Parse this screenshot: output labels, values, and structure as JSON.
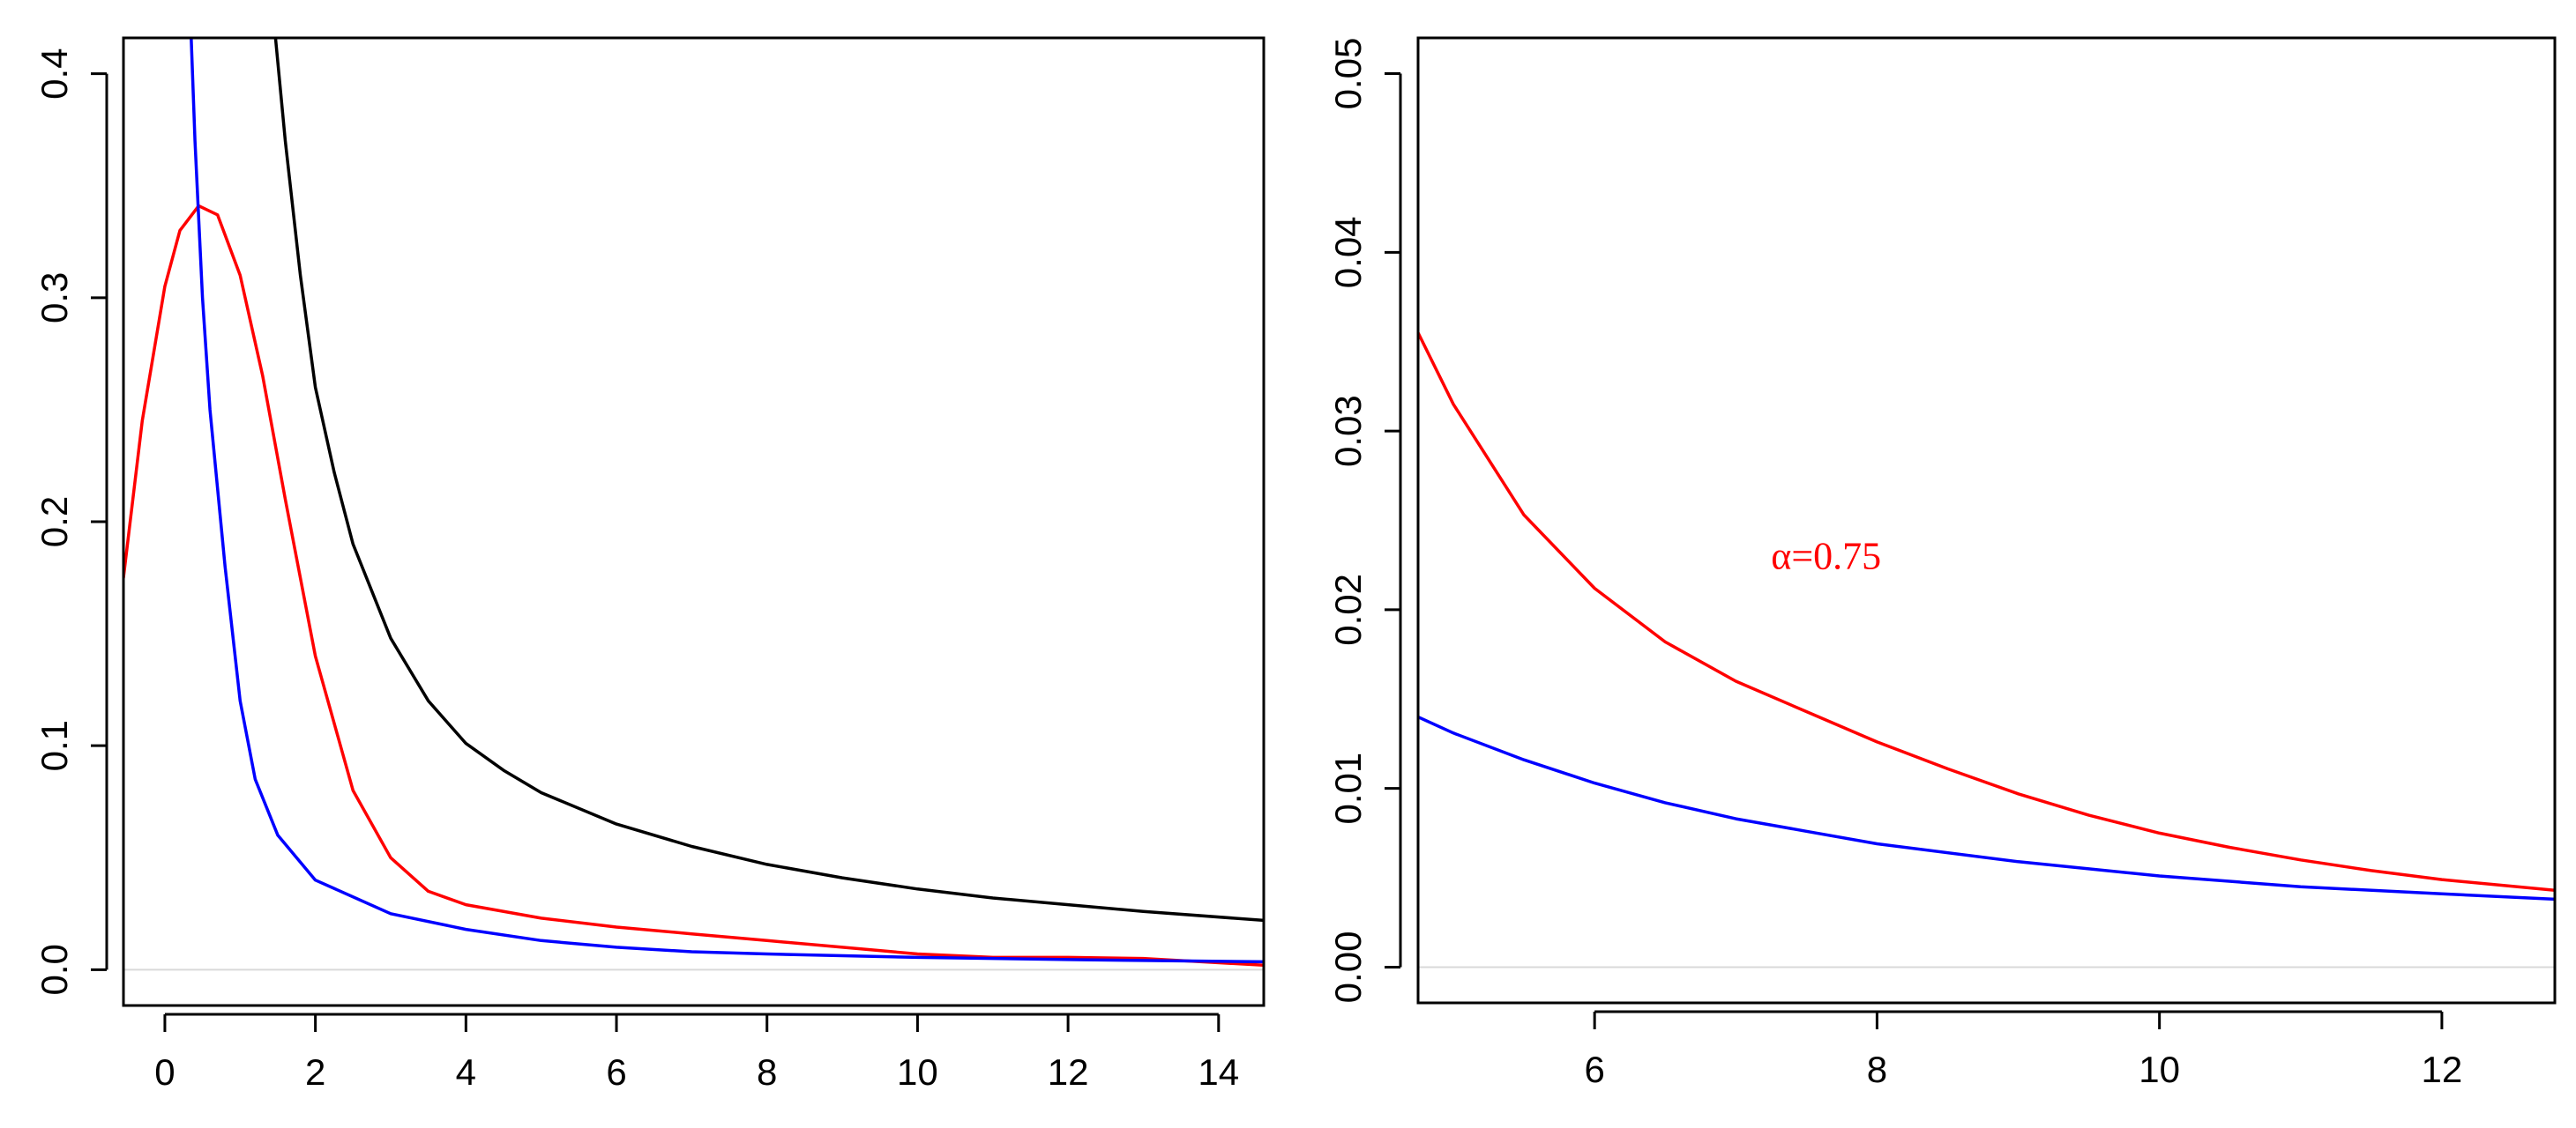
{
  "chart_data": [
    {
      "type": "line",
      "title": "",
      "xlabel": "",
      "ylabel": "",
      "xlim": [
        -0.55,
        14.6
      ],
      "ylim": [
        -0.016,
        0.416
      ],
      "xticks": [
        "0",
        "2",
        "4",
        "6",
        "8",
        "10",
        "12",
        "14"
      ],
      "yticks": [
        "0.0",
        "0.1",
        "0.2",
        "0.3",
        "0.4"
      ],
      "reference_line_y": 0,
      "grid": false,
      "series": [
        {
          "color": "#000000",
          "points": [
            [
              1.47,
              0.416
            ],
            [
              1.6,
              0.37
            ],
            [
              1.8,
              0.31
            ],
            [
              2.0,
              0.26
            ],
            [
              2.25,
              0.222
            ],
            [
              2.5,
              0.19
            ],
            [
              3.0,
              0.148
            ],
            [
              3.5,
              0.12
            ],
            [
              4.0,
              0.101
            ],
            [
              4.5,
              0.089
            ],
            [
              5.0,
              0.079
            ],
            [
              6.0,
              0.065
            ],
            [
              7.0,
              0.055
            ],
            [
              8.0,
              0.047
            ],
            [
              9.0,
              0.041
            ],
            [
              10.0,
              0.036
            ],
            [
              11.0,
              0.032
            ],
            [
              12.0,
              0.029
            ],
            [
              13.0,
              0.026
            ],
            [
              14.6,
              0.022
            ]
          ]
        },
        {
          "color": "#ff0000",
          "points": [
            [
              -0.55,
              0.175
            ],
            [
              -0.3,
              0.245
            ],
            [
              0.0,
              0.305
            ],
            [
              0.2,
              0.33
            ],
            [
              0.45,
              0.341
            ],
            [
              0.7,
              0.337
            ],
            [
              1.0,
              0.31
            ],
            [
              1.3,
              0.265
            ],
            [
              1.6,
              0.21
            ],
            [
              2.0,
              0.14
            ],
            [
              2.5,
              0.08
            ],
            [
              3.0,
              0.05
            ],
            [
              3.5,
              0.035
            ],
            [
              4.0,
              0.029
            ],
            [
              5.0,
              0.023
            ],
            [
              6.0,
              0.019
            ],
            [
              7.0,
              0.016
            ],
            [
              8.0,
              0.013
            ],
            [
              9.0,
              0.01
            ],
            [
              10.0,
              0.007
            ],
            [
              11.0,
              0.0055
            ],
            [
              12.0,
              0.0055
            ],
            [
              13.0,
              0.005
            ],
            [
              14.6,
              0.002
            ]
          ]
        },
        {
          "color": "#0000ff",
          "points": [
            [
              0.35,
              0.416
            ],
            [
              0.4,
              0.37
            ],
            [
              0.5,
              0.3
            ],
            [
              0.6,
              0.25
            ],
            [
              0.8,
              0.18
            ],
            [
              1.0,
              0.12
            ],
            [
              1.2,
              0.085
            ],
            [
              1.5,
              0.06
            ],
            [
              2.0,
              0.04
            ],
            [
              3.0,
              0.025
            ],
            [
              4.0,
              0.018
            ],
            [
              5.0,
              0.013
            ],
            [
              6.0,
              0.01
            ],
            [
              7.0,
              0.008
            ],
            [
              8.0,
              0.007
            ],
            [
              10.0,
              0.0055
            ],
            [
              12.0,
              0.0045
            ],
            [
              14.6,
              0.0035
            ]
          ]
        }
      ]
    },
    {
      "type": "line",
      "title": "",
      "xlabel": "",
      "ylabel": "",
      "xlim": [
        4.75,
        12.8
      ],
      "ylim": [
        -0.002,
        0.052
      ],
      "xticks": [
        "6",
        "8",
        "10",
        "12"
      ],
      "yticks": [
        "0.00",
        "0.01",
        "0.02",
        "0.03",
        "0.04",
        "0.05"
      ],
      "reference_line_y": 0,
      "grid": false,
      "annotations": [
        {
          "text": "α=0.75",
          "x": 7.25,
          "y": 0.0223,
          "color": "#ff0000"
        }
      ],
      "series": [
        {
          "color": "#ff0000",
          "points": [
            [
              4.75,
              0.0355
            ],
            [
              5.0,
              0.0315
            ],
            [
              5.5,
              0.0253
            ],
            [
              6.0,
              0.0212
            ],
            [
              6.5,
              0.0182
            ],
            [
              7.0,
              0.016
            ],
            [
              7.5,
              0.0143
            ],
            [
              8.0,
              0.0126
            ],
            [
              8.5,
              0.0111
            ],
            [
              9.0,
              0.0097
            ],
            [
              9.5,
              0.0085
            ],
            [
              10.0,
              0.0075
            ],
            [
              10.5,
              0.0067
            ],
            [
              11.0,
              0.006
            ],
            [
              11.5,
              0.0054
            ],
            [
              12.0,
              0.0049
            ],
            [
              12.8,
              0.0043
            ]
          ]
        },
        {
          "color": "#0000ff",
          "points": [
            [
              4.75,
              0.014
            ],
            [
              5.0,
              0.0131
            ],
            [
              5.5,
              0.0116
            ],
            [
              6.0,
              0.0103
            ],
            [
              6.5,
              0.0092
            ],
            [
              7.0,
              0.0083
            ],
            [
              7.5,
              0.0076
            ],
            [
              8.0,
              0.0069
            ],
            [
              9.0,
              0.0059
            ],
            [
              10.0,
              0.0051
            ],
            [
              11.0,
              0.0045
            ],
            [
              12.0,
              0.0041
            ],
            [
              12.8,
              0.0038
            ]
          ]
        }
      ]
    }
  ]
}
